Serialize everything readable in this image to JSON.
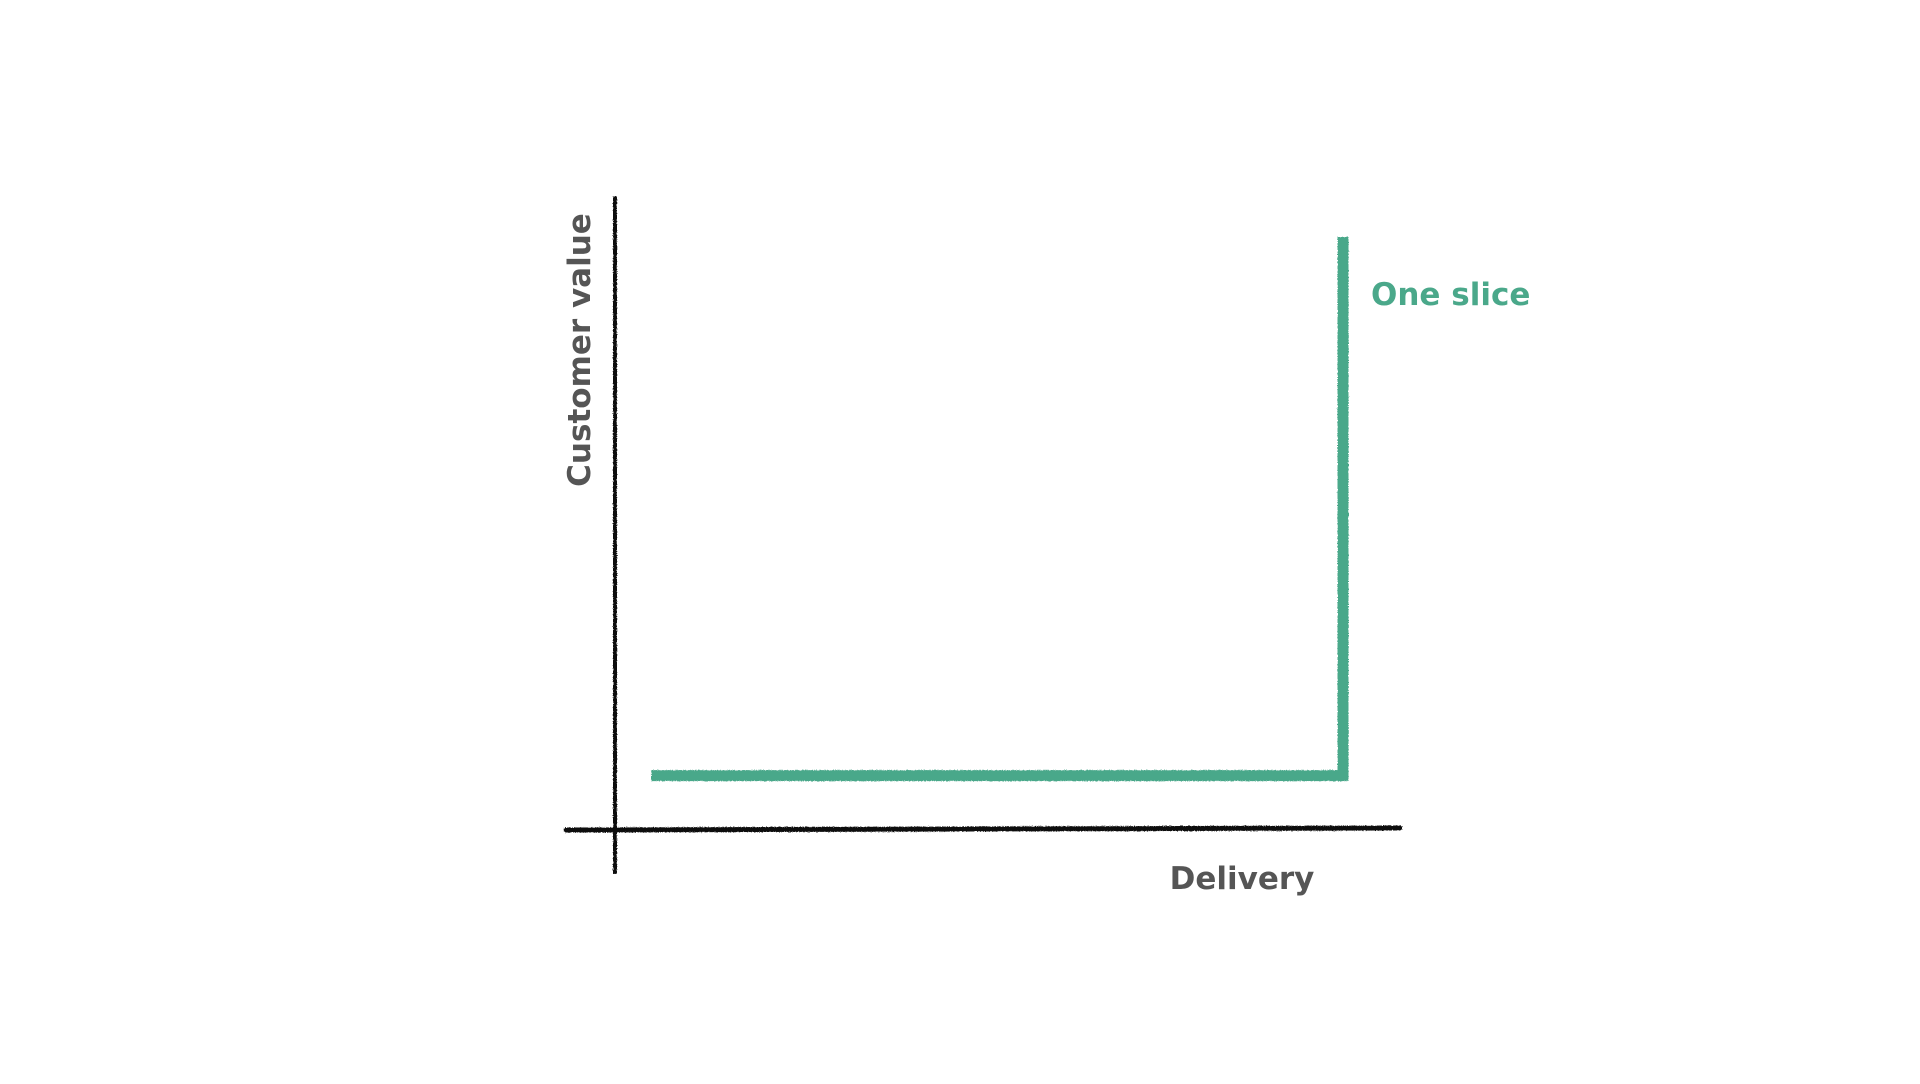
{
  "chart_data": {
    "type": "line",
    "title": "",
    "xlabel": "Delivery",
    "ylabel": "Customer value",
    "xlim": [
      0,
      10
    ],
    "ylim": [
      0,
      10
    ],
    "grid": false,
    "series": [
      {
        "name": "One slice",
        "color": "#4aa88a",
        "x": [
          0.5,
          10,
          10
        ],
        "y": [
          0.5,
          0.5,
          10
        ]
      }
    ]
  },
  "colors": {
    "axis": "#111111",
    "label_text": "#555555",
    "series": "#4aa88a"
  }
}
